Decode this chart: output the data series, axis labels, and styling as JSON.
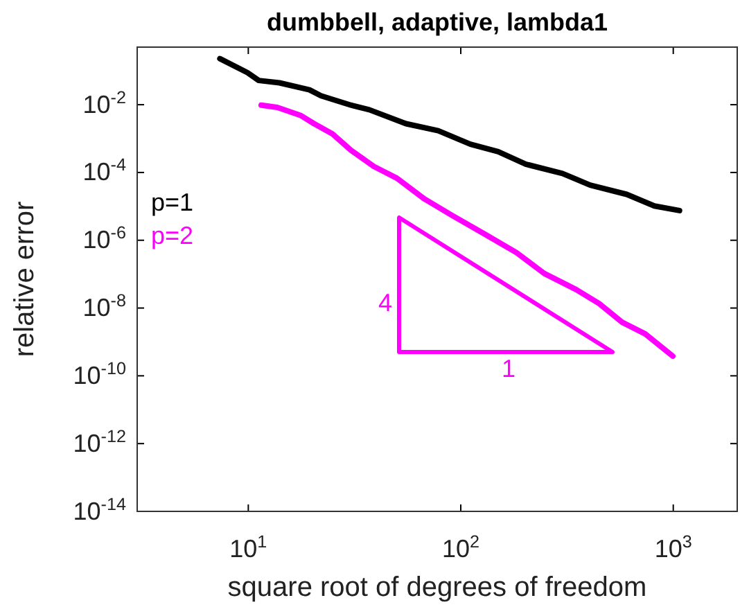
{
  "chart_data": {
    "type": "line",
    "title": "dumbbell, adaptive, lambda1",
    "xlabel": "square root of degrees of freedom",
    "ylabel": "relative error",
    "log": "xy",
    "grid": false,
    "legend": "left",
    "line_style": "solid",
    "marker": "none",
    "xlim": [
      3,
      2000
    ],
    "ylim": [
      1e-14,
      0.5
    ],
    "xticks": [
      {
        "value": 10,
        "label": "10$^{1}$"
      },
      {
        "value": 100,
        "label": "10$^{2}$"
      },
      {
        "value": 1000,
        "label": "10$^{3}$"
      }
    ],
    "yticks": [
      {
        "value": 1e-14,
        "label": "10$^{-14}$"
      },
      {
        "value": 1e-12,
        "label": "10$^{-12}$"
      },
      {
        "value": 1e-10,
        "label": "10$^{-10}$"
      },
      {
        "value": 1e-08,
        "label": "10$^{-8}$"
      },
      {
        "value": 1e-06,
        "label": "10$^{-6}$"
      },
      {
        "value": 0.0001,
        "label": "10$^{-4}$"
      },
      {
        "value": 0.01,
        "label": "10$^{-2}$"
      }
    ],
    "series": [
      {
        "name": "p=1",
        "color": "#000000",
        "x": [
          7.35,
          9.9,
          11.2,
          14.0,
          19.4,
          22.0,
          30.4,
          37.1,
          55.2,
          78.3,
          111,
          150,
          202,
          301,
          406,
          604,
          815,
          1070
        ],
        "values": [
          0.229,
          0.0887,
          0.0519,
          0.0443,
          0.0275,
          0.0183,
          0.0097,
          0.0071,
          0.00275,
          0.00171,
          0.000684,
          0.000413,
          0.000176,
          9.35e-05,
          4.25e-05,
          2.26e-05,
          1.03e-05,
          7.5e-06
        ]
      },
      {
        "name": "p=2",
        "color": "#ff00ff",
        "x": [
          11.5,
          13.7,
          17.6,
          20.4,
          24.9,
          30.4,
          39.0,
          50.0,
          67.5,
          91.0,
          129,
          183,
          247,
          349,
          448,
          575,
          738,
          995
        ],
        "values": [
          0.0097,
          0.0083,
          0.00485,
          0.00275,
          0.00137,
          0.000455,
          0.00015,
          6.8e-05,
          1.65e-05,
          5.4e-06,
          1.54e-06,
          4.3e-07,
          1.05e-07,
          3.5e-08,
          1.35e-08,
          3.8e-09,
          1.73e-09,
          3.8e-10
        ]
      }
    ],
    "annotations": [
      "4",
      "1"
    ]
  }
}
